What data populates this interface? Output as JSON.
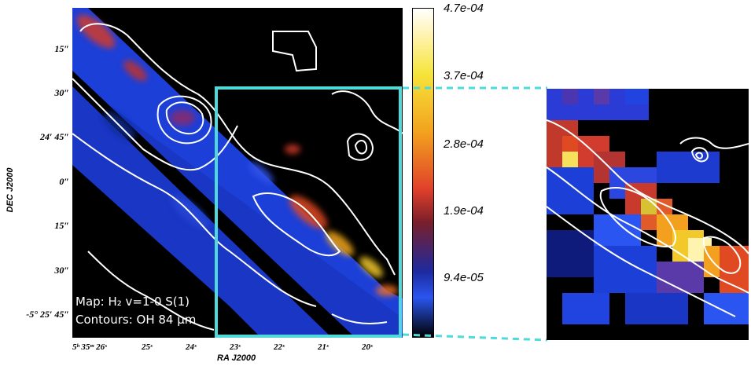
{
  "figure": {
    "dec_axis_title": "DEC J2000",
    "ra_axis_title": "RA J2000",
    "dec_ticks": [
      "15″",
      "30″",
      "24′ 45″",
      "0″",
      "15″",
      "30″",
      "-5° 25′ 45″"
    ],
    "ra_ticks": [
      "5ʰ 35ᵐ 26ˢ",
      "25ˢ",
      "24ˢ",
      "23ˢ",
      "22ˢ",
      "21ˢ",
      "20ˢ"
    ],
    "caption_map": "Map: H₂ v=1-0 S(1)",
    "caption_contours": "Contours: OH 84 μm",
    "colorbar_labels": [
      "4.7e-04",
      "3.7e-04",
      "2.8e-04",
      "1.9e-04",
      "9.4e-05"
    ],
    "colors": {
      "zoom_box": "#4fd9d9",
      "contour": "#ffffff",
      "background": "#000000"
    }
  }
}
